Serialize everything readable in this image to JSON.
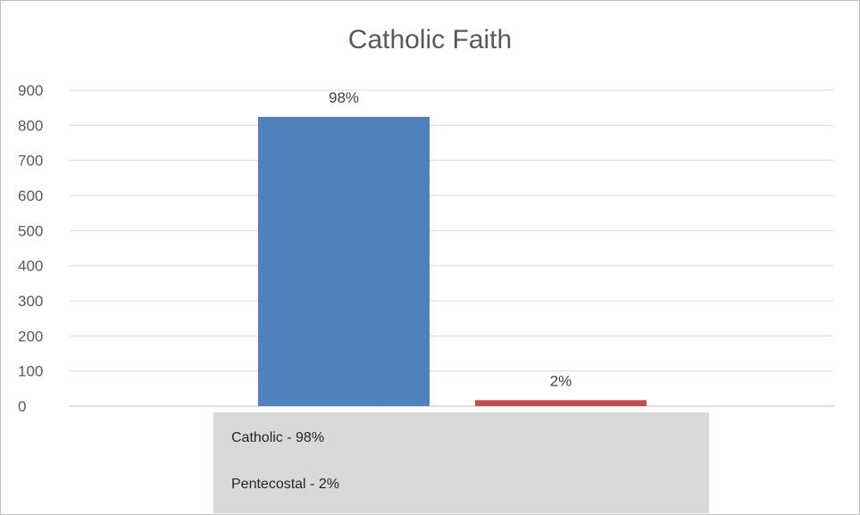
{
  "chart_data": {
    "type": "bar",
    "title": "Catholic Faith",
    "xlabel": "",
    "ylabel": "",
    "ylim": [
      0,
      900
    ],
    "yticks": [
      0,
      100,
      200,
      300,
      400,
      500,
      600,
      700,
      800,
      900
    ],
    "grid": true,
    "categories": [
      "Catholic",
      "Pentecostal"
    ],
    "values": [
      824,
      17
    ],
    "data_labels": [
      "98%",
      "2%"
    ],
    "colors": [
      "#4f81bd",
      "#c0504d"
    ],
    "legend_position": "bottom",
    "legend": [
      "Catholic - 98%",
      "Pentecostal - 2%"
    ]
  }
}
